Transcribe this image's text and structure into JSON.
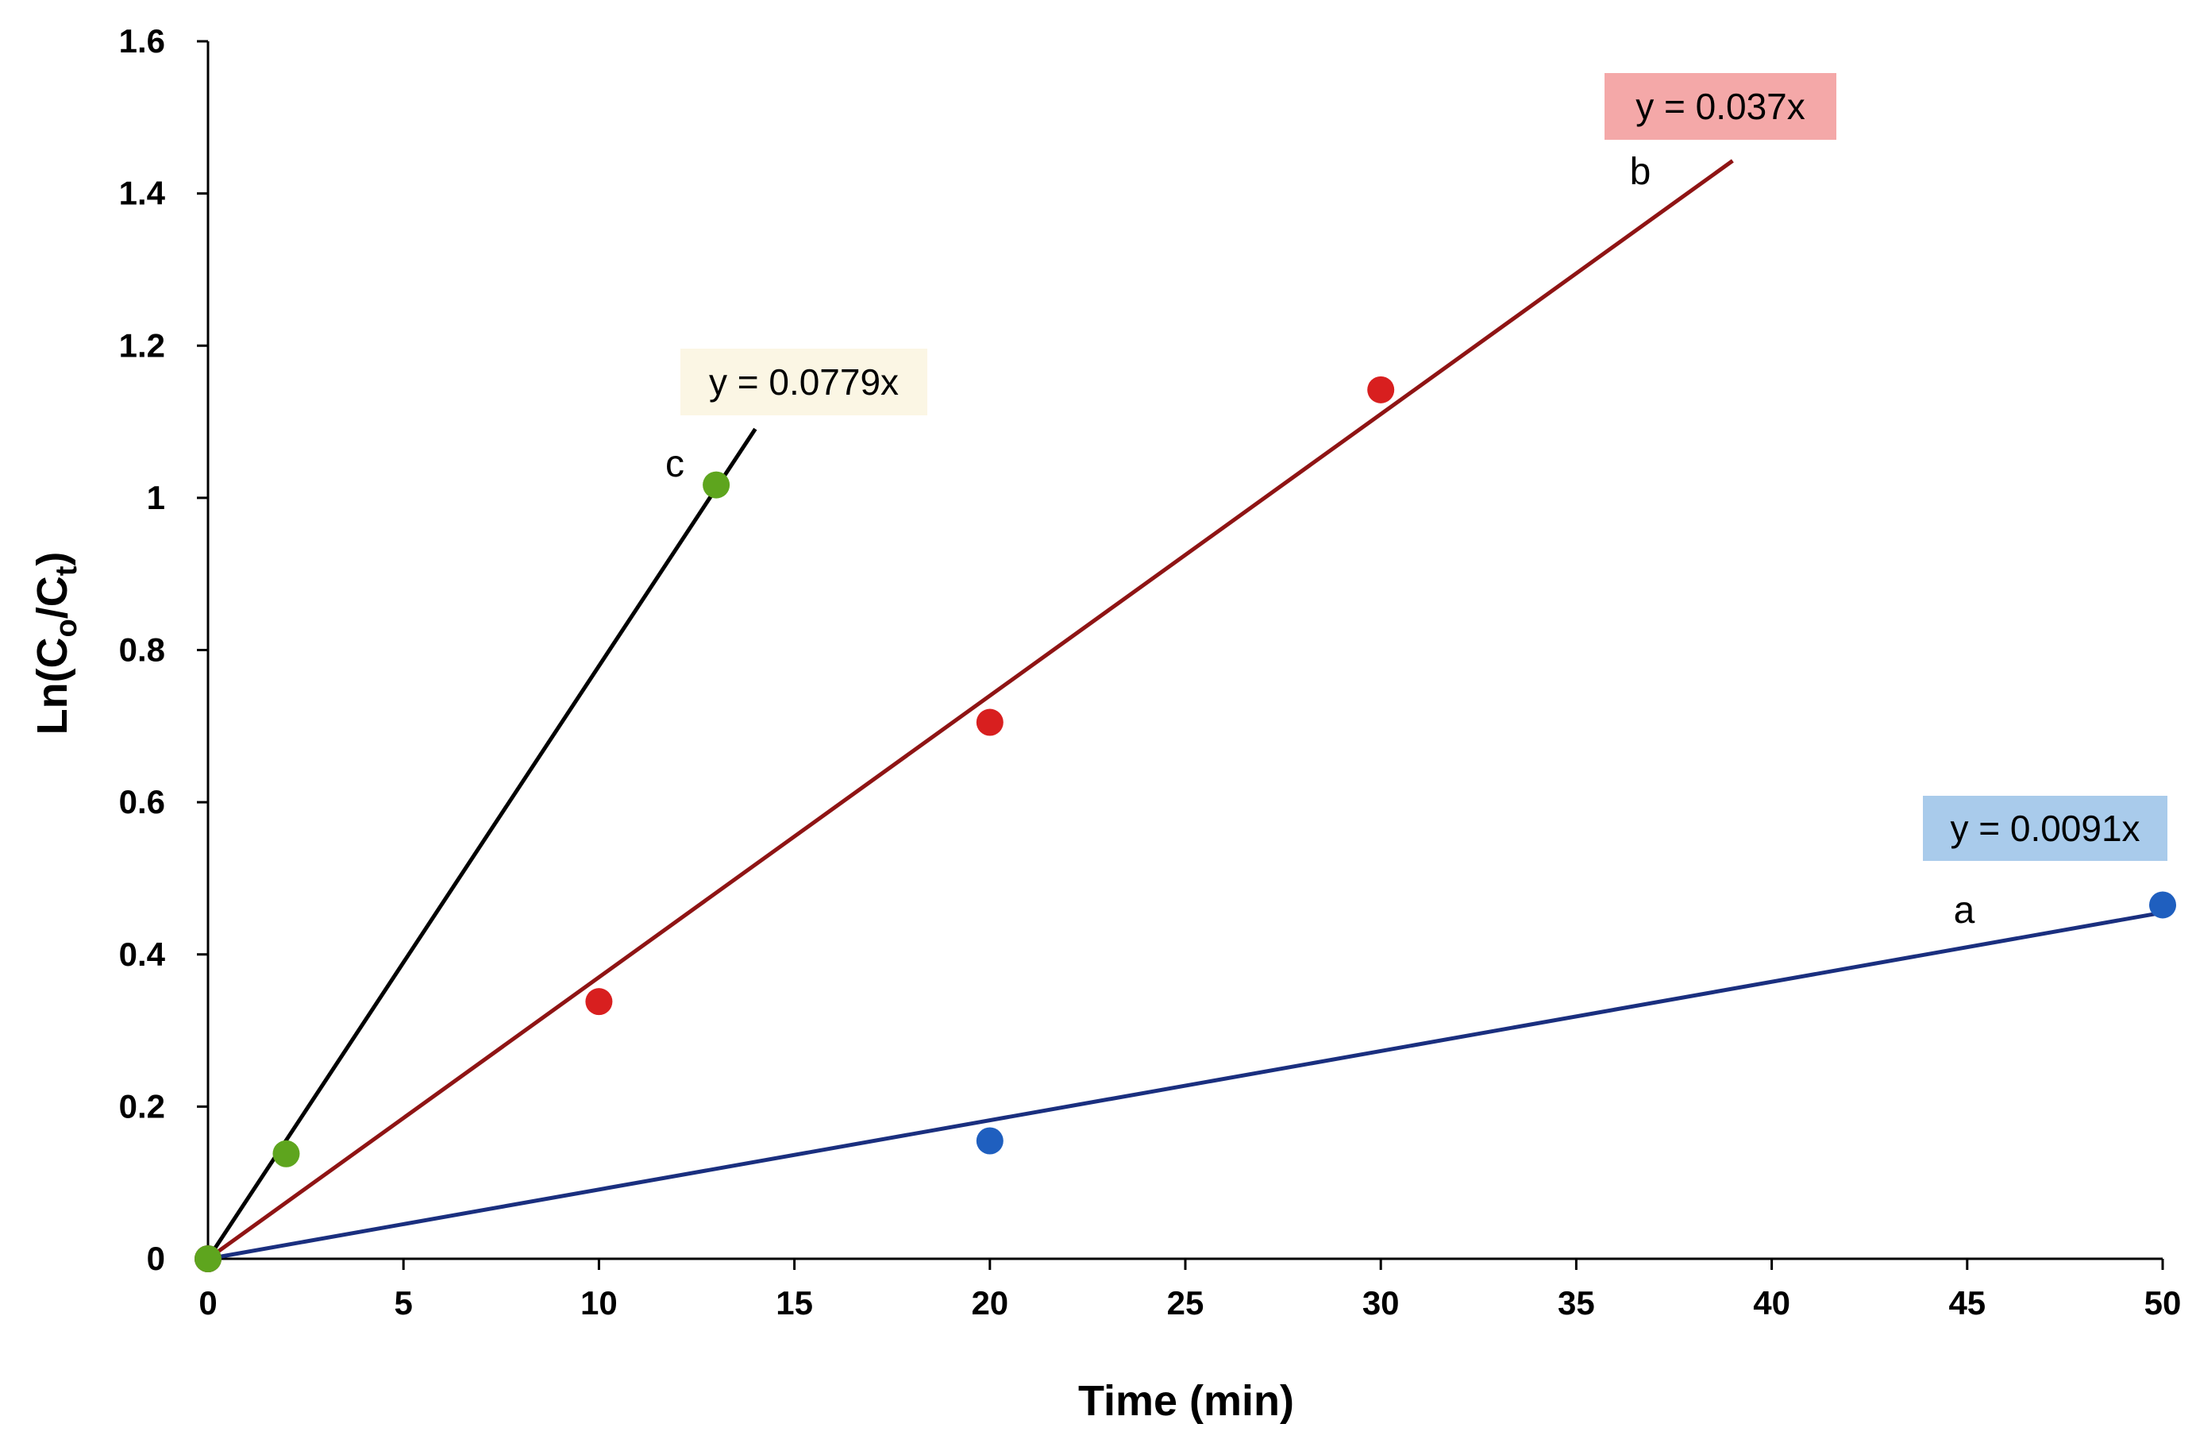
{
  "chart_data": {
    "type": "scatter",
    "title": "",
    "xlabel": "Time (min)",
    "ylabel_parts": {
      "prefix": "Ln(C",
      "sub1": "o",
      "mid": "/C",
      "sub2": "t",
      "suffix": ")"
    },
    "xlim": [
      0,
      50
    ],
    "ylim": [
      0,
      1.6
    ],
    "xticks": [
      "0",
      "5",
      "10",
      "15",
      "20",
      "25",
      "30",
      "35",
      "40",
      "45",
      "50"
    ],
    "yticks": [
      "0",
      "0.2",
      "0.4",
      "0.6",
      "0.8",
      "1",
      "1.2",
      "1.4",
      "1.6"
    ],
    "grid": false,
    "series": [
      {
        "name": "a",
        "marker_color": "#1f5fbf",
        "line_color": "#1a2f7f",
        "points": [
          [
            0,
            0
          ],
          [
            20,
            0.155
          ],
          [
            50,
            0.465
          ]
        ],
        "trendline": {
          "slope": 0.0091,
          "x_range": [
            0,
            50
          ]
        },
        "equation": "y = 0.0091x",
        "equation_bg": "#a9cbeb"
      },
      {
        "name": "b",
        "marker_color": "#d81f1f",
        "line_color": "#8f1414",
        "points": [
          [
            0,
            0
          ],
          [
            10,
            0.338
          ],
          [
            20,
            0.705
          ],
          [
            30,
            1.142
          ]
        ],
        "trendline": {
          "slope": 0.037,
          "x_range": [
            0,
            39
          ]
        },
        "equation": "y = 0.037x",
        "equation_bg": "#f4a8a8"
      },
      {
        "name": "c",
        "marker_color": "#5ea51e",
        "line_color": "#000000",
        "points": [
          [
            0,
            0
          ],
          [
            2,
            0.138
          ],
          [
            13,
            1.017
          ]
        ],
        "trendline": {
          "slope": 0.0779,
          "x_range": [
            0,
            14
          ]
        },
        "equation": "y = 0.0779x",
        "equation_bg": "#fbf6e4"
      }
    ]
  }
}
